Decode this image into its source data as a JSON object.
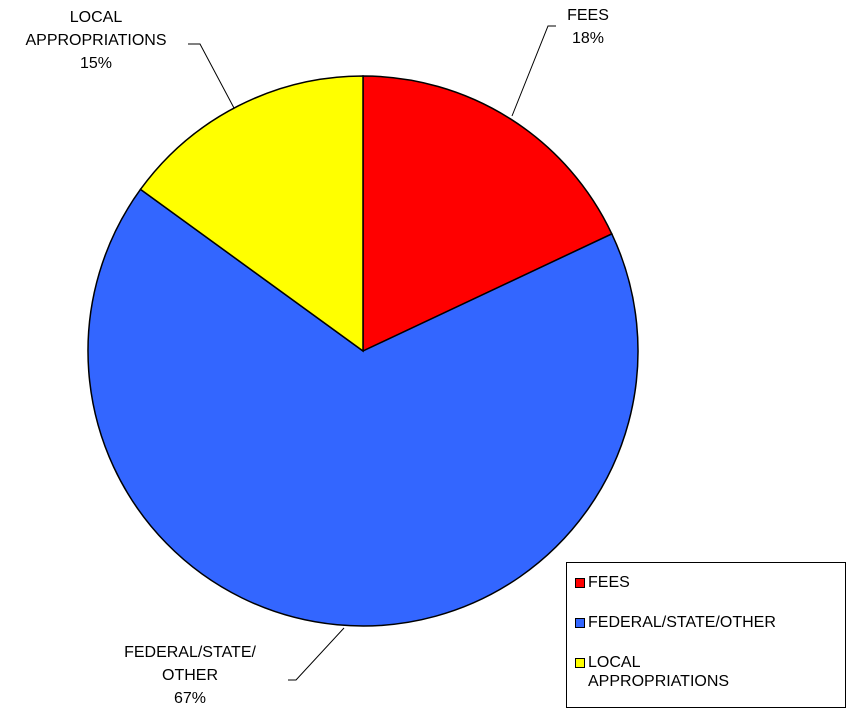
{
  "chart_data": {
    "type": "pie",
    "title": "",
    "start_angle_deg": 0,
    "direction": "clockwise",
    "slices": [
      {
        "name": "FEES",
        "value": 18,
        "label": "FEES\n18%",
        "color": "#ff0000"
      },
      {
        "name": "FEDERAL/STATE/OTHER",
        "value": 67,
        "label": "FEDERAL/STATE/\nOTHER\n67%",
        "color": "#3366ff"
      },
      {
        "name": "LOCAL APPROPRIATIONS",
        "value": 15,
        "label": "LOCAL\nAPPROPRIATIONS\n15%",
        "color": "#ffff00"
      }
    ],
    "legend": {
      "placement": "bottom-right",
      "entries": [
        {
          "label": "FEES",
          "color": "#ff0000"
        },
        {
          "label": "FEDERAL/STATE/OTHER",
          "color": "#3366ff"
        },
        {
          "label": "LOCAL\nAPPROPRIATIONS",
          "color": "#ffff00"
        }
      ]
    }
  }
}
